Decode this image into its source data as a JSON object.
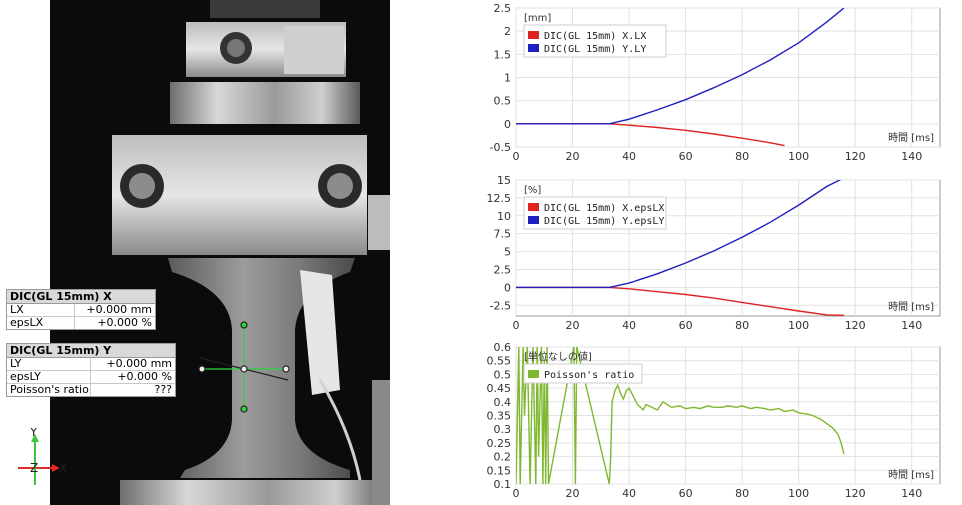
{
  "table_x": {
    "title": "DIC(GL 15mm) X",
    "rows": [
      {
        "label": "LX",
        "value": "+0.000 mm"
      },
      {
        "label": "epsLX",
        "value": "+0.000 %"
      }
    ]
  },
  "table_y": {
    "title": "DIC(GL 15mm) Y",
    "rows": [
      {
        "label": "LY",
        "value": "+0.000 mm"
      },
      {
        "label": "epsLY",
        "value": "+0.000 %"
      },
      {
        "label": "Poisson's ratio",
        "value": "???"
      }
    ]
  },
  "axes_gizmo": {
    "y": "Y",
    "z": "Z",
    "x": "X"
  },
  "colors": {
    "red": "#dd2222",
    "blue": "#1f1fbf",
    "green": "#7fb830"
  },
  "chart_data": [
    {
      "type": "line",
      "unit_label": "[mm]",
      "xlabel": "時間 [ms]",
      "xlim": [
        0,
        150
      ],
      "ylim": [
        -0.5,
        2.5
      ],
      "xticks": [
        0,
        20,
        40,
        60,
        80,
        100,
        120,
        140
      ],
      "yticks": [
        -0.5,
        0,
        0.5,
        1,
        1.5,
        2,
        2.5
      ],
      "ytick_labels": [
        "-0.5",
        "0",
        "0.5",
        "1",
        "1.5",
        "2",
        "2.5"
      ],
      "series": [
        {
          "name": "DIC(GL 15mm) X.LX",
          "color": "#dd2222",
          "x": [
            0,
            33,
            40,
            50,
            60,
            70,
            80,
            90,
            95
          ],
          "y": [
            0,
            0,
            -0.03,
            -0.08,
            -0.14,
            -0.22,
            -0.31,
            -0.41,
            -0.47
          ]
        },
        {
          "name": "DIC(GL 15mm) Y.LY",
          "color": "#1f1fbf",
          "x": [
            0,
            33,
            40,
            50,
            60,
            70,
            80,
            90,
            100,
            110,
            116
          ],
          "y": [
            0,
            0,
            0.1,
            0.3,
            0.52,
            0.78,
            1.06,
            1.38,
            1.75,
            2.2,
            2.5
          ]
        }
      ]
    },
    {
      "type": "line",
      "unit_label": "[%]",
      "xlabel": "時間 [ms]",
      "xlim": [
        0,
        150
      ],
      "ylim": [
        -4,
        15
      ],
      "xticks": [
        0,
        20,
        40,
        60,
        80,
        100,
        120,
        140
      ],
      "yticks": [
        -2.5,
        0,
        2.5,
        5,
        7.5,
        10,
        12.5,
        15
      ],
      "ytick_labels": [
        "-2.5",
        "0",
        "2.5",
        "5",
        "7.5",
        "10",
        "12.5",
        "15"
      ],
      "series": [
        {
          "name": "DIC(GL 15mm) X.epsLX",
          "color": "#dd2222",
          "x": [
            0,
            33,
            40,
            50,
            60,
            70,
            80,
            90,
            100,
            110,
            116
          ],
          "y": [
            0,
            0,
            -0.2,
            -0.6,
            -1.0,
            -1.5,
            -2.1,
            -2.7,
            -3.3,
            -3.85,
            -3.9
          ]
        },
        {
          "name": "DIC(GL 15mm) Y.epsLY",
          "color": "#1f1fbf",
          "x": [
            0,
            33,
            40,
            50,
            60,
            70,
            80,
            90,
            100,
            110,
            116
          ],
          "y": [
            0,
            0,
            0.6,
            1.9,
            3.4,
            5.1,
            7.0,
            9.1,
            11.5,
            14.1,
            15.3
          ]
        }
      ]
    },
    {
      "type": "line",
      "unit_label": "[単位なしの値]",
      "xlabel": "時間 [ms]",
      "xlim": [
        0,
        150
      ],
      "ylim": [
        0.1,
        0.6
      ],
      "xticks": [
        0,
        20,
        40,
        60,
        80,
        100,
        120,
        140
      ],
      "yticks": [
        0.1,
        0.15,
        0.2,
        0.25,
        0.3,
        0.35,
        0.4,
        0.45,
        0.5,
        0.55,
        0.6
      ],
      "ytick_labels": [
        "0.1",
        "0.15",
        "0.2",
        "0.25",
        "0.3",
        "0.35",
        "0.4",
        "0.45",
        "0.5",
        "0.55",
        "0.6"
      ],
      "series": [
        {
          "name": "Poisson's ratio",
          "color": "#7fb830",
          "x": [
            0,
            1,
            1.5,
            2.5,
            3,
            4,
            5,
            6,
            7,
            7.5,
            8,
            9,
            9.5,
            10,
            10.5,
            11,
            11.5,
            20.5,
            21,
            21.5,
            33,
            33.5,
            34,
            35,
            36,
            37,
            38,
            39,
            40,
            41,
            42,
            43,
            44,
            45,
            46,
            48,
            50,
            52,
            55,
            58,
            60,
            63,
            65,
            68,
            70,
            73,
            75,
            78,
            80,
            83,
            85,
            88,
            90,
            93,
            95,
            98,
            100,
            103,
            105,
            108,
            110,
            112,
            114,
            115,
            116
          ],
          "y": [
            0.1,
            0.6,
            0.1,
            0.6,
            0.35,
            0.6,
            0.1,
            0.6,
            0.1,
            0.6,
            0.2,
            0.6,
            0.1,
            0.55,
            0.1,
            0.6,
            0.1,
            0.6,
            0.1,
            0.6,
            0.1,
            0.2,
            0.4,
            0.44,
            0.46,
            0.43,
            0.41,
            0.44,
            0.45,
            0.43,
            0.41,
            0.39,
            0.38,
            0.37,
            0.39,
            0.38,
            0.37,
            0.4,
            0.38,
            0.385,
            0.375,
            0.38,
            0.375,
            0.385,
            0.38,
            0.38,
            0.385,
            0.38,
            0.385,
            0.375,
            0.38,
            0.375,
            0.37,
            0.375,
            0.365,
            0.37,
            0.36,
            0.355,
            0.35,
            0.335,
            0.32,
            0.305,
            0.28,
            0.25,
            0.21
          ]
        }
      ]
    }
  ]
}
